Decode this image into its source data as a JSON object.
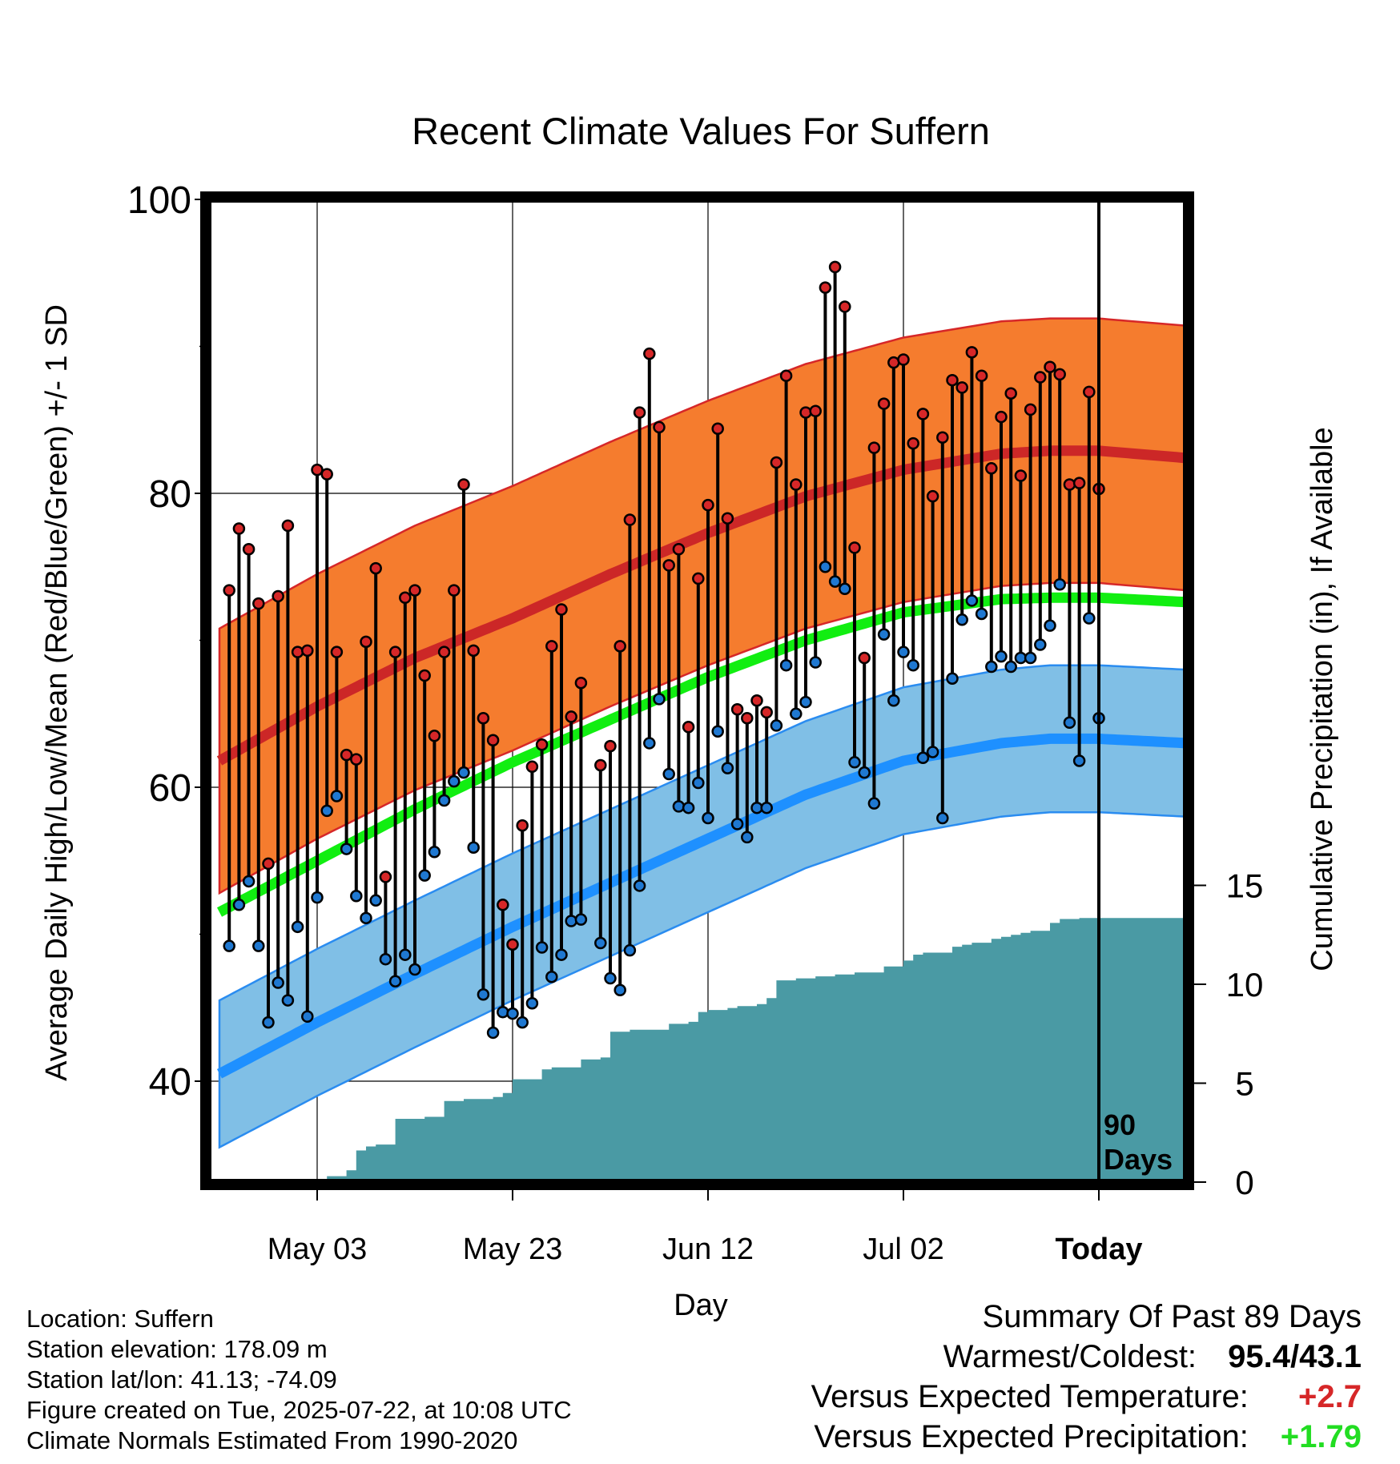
{
  "title": "Recent Climate Values For Suffern",
  "xlabel": "Day",
  "ylabel_left": "Average Daily High/Low/Mean (Red/Blue/Green) +/- 1 SD",
  "ylabel_right": "Cumulative Precipitation (in), If Available",
  "today_label_1": "90",
  "today_label_2": "Days",
  "info": {
    "location": "Location: Suffern",
    "elevation": "Station elevation: 178.09 m",
    "latlon": "Station lat/lon: 41.13; -74.09",
    "created": "Figure created on Tue, 2025-07-22, at 10:08 UTC",
    "normals": "Climate Normals Estimated From 1990-2020"
  },
  "summary": {
    "heading": "Summary Of Past 89 Days",
    "warm_cold_label": "Warmest/Coldest:",
    "warm_cold_value": "95.4/43.1",
    "temp_label": "Versus Expected Temperature:",
    "temp_value": "+2.7",
    "temp_color": "#d62728",
    "precip_label": "Versus Expected Precipitation:",
    "precip_value": "+1.79",
    "precip_color": "#22dd22"
  },
  "chart_data": {
    "type": "line",
    "x_range": [
      -90,
      9
    ],
    "x_ticks": [
      {
        "day": -80,
        "label": "May 03"
      },
      {
        "day": -60,
        "label": "May 23"
      },
      {
        "day": -40,
        "label": "Jun 12"
      },
      {
        "day": -20,
        "label": "Jul 02"
      },
      {
        "day": 0,
        "label": "Today"
      }
    ],
    "y_left_range": [
      33,
      100
    ],
    "y_left_ticks": [
      40,
      60,
      80,
      100
    ],
    "y_right_range": [
      0,
      50
    ],
    "y_right_ticks": [
      0,
      5,
      10,
      15
    ],
    "colors": {
      "high_band": "#f57c2e",
      "high_band_edge": "#d62728",
      "high_normal": "#cc2727",
      "low_band": "#80bfe6",
      "low_band_edge": "#2a8cf0",
      "low_normal": "#1e90ff",
      "mean_normal": "#11ee11",
      "precip": "#4a9aa4",
      "high_dot": "#d62728",
      "low_dot": "#1f78d1"
    },
    "normals": {
      "day": [
        -90,
        -80,
        -70,
        -60,
        -50,
        -40,
        -30,
        -20,
        -10,
        -5,
        0,
        9
      ],
      "high": [
        61.8,
        65.5,
        68.8,
        71.5,
        74.5,
        77.3,
        79.8,
        81.6,
        82.7,
        82.9,
        82.9,
        82.4
      ],
      "high_sd": 9.0,
      "low": [
        40.5,
        44.0,
        47.3,
        50.5,
        53.5,
        56.5,
        59.5,
        61.8,
        63.0,
        63.3,
        63.3,
        63.0
      ],
      "low_sd": 5.0,
      "mean": [
        51.5,
        55.0,
        58.5,
        61.7,
        64.6,
        67.5,
        70.0,
        71.9,
        72.8,
        72.9,
        72.9,
        72.6
      ]
    },
    "daily": [
      {
        "day": -89,
        "high": 73.4,
        "low": 49.2
      },
      {
        "day": -88,
        "high": 77.6,
        "low": 52.0
      },
      {
        "day": -87,
        "high": 76.2,
        "low": 53.6
      },
      {
        "day": -86,
        "high": 72.5,
        "low": 49.2
      },
      {
        "day": -85,
        "high": 54.8,
        "low": 44.0
      },
      {
        "day": -84,
        "high": 73.0,
        "low": 46.7
      },
      {
        "day": -83,
        "high": 77.8,
        "low": 45.5
      },
      {
        "day": -82,
        "high": 69.2,
        "low": 50.5
      },
      {
        "day": -81,
        "high": 69.3,
        "low": 44.4
      },
      {
        "day": -80,
        "high": 81.6,
        "low": 52.5
      },
      {
        "day": -79,
        "high": 81.3,
        "low": 58.4
      },
      {
        "day": -78,
        "high": 69.2,
        "low": 59.4
      },
      {
        "day": -77,
        "high": 62.2,
        "low": 55.8
      },
      {
        "day": -76,
        "high": 61.9,
        "low": 52.6
      },
      {
        "day": -75,
        "high": 69.9,
        "low": 51.1
      },
      {
        "day": -74,
        "high": 74.9,
        "low": 52.3
      },
      {
        "day": -73,
        "high": 53.9,
        "low": 48.3
      },
      {
        "day": -72,
        "high": 69.2,
        "low": 46.8
      },
      {
        "day": -71,
        "high": 72.9,
        "low": 48.6
      },
      {
        "day": -70,
        "high": 73.4,
        "low": 47.6
      },
      {
        "day": -69,
        "high": 67.6,
        "low": 54.0
      },
      {
        "day": -68,
        "high": 63.5,
        "low": 55.6
      },
      {
        "day": -67,
        "high": 69.2,
        "low": 59.1
      },
      {
        "day": -66,
        "high": 73.4,
        "low": 60.4
      },
      {
        "day": -65,
        "high": 80.6,
        "low": 61.0
      },
      {
        "day": -64,
        "high": 69.3,
        "low": 55.9
      },
      {
        "day": -63,
        "high": 64.7,
        "low": 45.9
      },
      {
        "day": -62,
        "high": 63.2,
        "low": 43.3
      },
      {
        "day": -61,
        "high": 52.0,
        "low": 44.7
      },
      {
        "day": -60,
        "high": 49.3,
        "low": 44.6
      },
      {
        "day": -59,
        "high": 57.4,
        "low": 44.0
      },
      {
        "day": -58,
        "high": 61.4,
        "low": 45.3
      },
      {
        "day": -57,
        "high": 62.9,
        "low": 49.1
      },
      {
        "day": -56,
        "high": 69.6,
        "low": 47.1
      },
      {
        "day": -55,
        "high": 72.1,
        "low": 48.6
      },
      {
        "day": -54,
        "high": 64.8,
        "low": 50.9
      },
      {
        "day": -53,
        "high": 67.1,
        "low": 51.0
      },
      {
        "day": -51,
        "high": 61.5,
        "low": 49.4
      },
      {
        "day": -50,
        "high": 62.8,
        "low": 47.0
      },
      {
        "day": -49,
        "high": 69.6,
        "low": 46.2
      },
      {
        "day": -48,
        "high": 78.2,
        "low": 48.9
      },
      {
        "day": -47,
        "high": 85.5,
        "low": 53.3
      },
      {
        "day": -46,
        "high": 89.5,
        "low": 63.0
      },
      {
        "day": -45,
        "high": 84.5,
        "low": 66.0
      },
      {
        "day": -44,
        "high": 75.1,
        "low": 60.9
      },
      {
        "day": -43,
        "high": 76.2,
        "low": 58.7
      },
      {
        "day": -42,
        "high": 64.1,
        "low": 58.6
      },
      {
        "day": -41,
        "high": 74.2,
        "low": 60.3
      },
      {
        "day": -40,
        "high": 79.2,
        "low": 57.9
      },
      {
        "day": -39,
        "high": 84.4,
        "low": 63.8
      },
      {
        "day": -38,
        "high": 78.3,
        "low": 61.3
      },
      {
        "day": -37,
        "high": 65.3,
        "low": 57.5
      },
      {
        "day": -36,
        "high": 64.7,
        "low": 56.6
      },
      {
        "day": -35,
        "high": 65.9,
        "low": 58.6
      },
      {
        "day": -34,
        "high": 65.1,
        "low": 58.6
      },
      {
        "day": -33,
        "high": 82.1,
        "low": 64.2
      },
      {
        "day": -32,
        "high": 88.0,
        "low": 68.3
      },
      {
        "day": -31,
        "high": 80.6,
        "low": 65.0
      },
      {
        "day": -30,
        "high": 85.5,
        "low": 65.8
      },
      {
        "day": -29,
        "high": 85.6,
        "low": 68.5
      },
      {
        "day": -28,
        "high": 94.0,
        "low": 75.0
      },
      {
        "day": -27,
        "high": 95.4,
        "low": 74.0
      },
      {
        "day": -26,
        "high": 92.7,
        "low": 73.5
      },
      {
        "day": -25,
        "high": 76.3,
        "low": 61.7
      },
      {
        "day": -24,
        "high": 68.8,
        "low": 61.0
      },
      {
        "day": -23,
        "high": 83.1,
        "low": 58.9
      },
      {
        "day": -22,
        "high": 86.1,
        "low": 70.4
      },
      {
        "day": -21,
        "high": 88.9,
        "low": 65.9
      },
      {
        "day": -20,
        "high": 89.1,
        "low": 69.2
      },
      {
        "day": -19,
        "high": 83.4,
        "low": 68.3
      },
      {
        "day": -18,
        "high": 85.4,
        "low": 62.0
      },
      {
        "day": -17,
        "high": 79.8,
        "low": 62.4
      },
      {
        "day": -16,
        "high": 83.8,
        "low": 57.9
      },
      {
        "day": -15,
        "high": 87.7,
        "low": 67.4
      },
      {
        "day": -14,
        "high": 87.2,
        "low": 71.4
      },
      {
        "day": -13,
        "high": 89.6,
        "low": 72.7
      },
      {
        "day": -12,
        "high": 88.0,
        "low": 71.8
      },
      {
        "day": -11,
        "high": 81.7,
        "low": 68.2
      },
      {
        "day": -10,
        "high": 85.2,
        "low": 68.9
      },
      {
        "day": -9,
        "high": 86.8,
        "low": 68.2
      },
      {
        "day": -8,
        "high": 81.2,
        "low": 68.8
      },
      {
        "day": -7,
        "high": 85.7,
        "low": 68.8
      },
      {
        "day": -6,
        "high": 87.9,
        "low": 69.7
      },
      {
        "day": -5,
        "high": 88.6,
        "low": 71.0
      },
      {
        "day": -4,
        "high": 88.1,
        "low": 73.8
      },
      {
        "day": -3,
        "high": 80.6,
        "low": 64.4
      },
      {
        "day": -2,
        "high": 80.7,
        "low": 61.8
      },
      {
        "day": -1,
        "high": 86.9,
        "low": 71.5
      },
      {
        "day": 0,
        "high": 80.3,
        "low": 64.7
      }
    ],
    "precip_cumulative": {
      "day": [
        -90,
        -80,
        -79,
        -77,
        -76,
        -75,
        -74,
        -72,
        -69,
        -67,
        -65,
        -62,
        -61,
        -60,
        -57,
        -56,
        -55,
        -53,
        -51,
        -50,
        -48,
        -46,
        -44,
        -42,
        -41,
        -40,
        -38,
        -37,
        -36,
        -35,
        -34,
        -33,
        -31,
        -29,
        -27,
        -26,
        -25,
        -22,
        -21,
        -20,
        -19,
        -18,
        -15,
        -14,
        -13,
        -11,
        -10,
        -9,
        -8,
        -7,
        -6,
        -5,
        -4,
        -3,
        -2,
        -1,
        0,
        9
      ],
      "value": [
        0.05,
        0.05,
        0.3,
        0.6,
        1.6,
        1.8,
        1.9,
        3.2,
        3.3,
        4.1,
        4.2,
        4.3,
        4.5,
        5.2,
        5.7,
        5.8,
        5.8,
        6.2,
        6.3,
        7.6,
        7.7,
        7.7,
        8.0,
        8.1,
        8.6,
        8.7,
        8.8,
        8.9,
        8.9,
        9.0,
        9.3,
        10.2,
        10.3,
        10.4,
        10.5,
        10.5,
        10.6,
        10.9,
        10.9,
        11.2,
        11.5,
        11.6,
        11.9,
        12.0,
        12.1,
        12.3,
        12.4,
        12.5,
        12.6,
        12.7,
        12.7,
        13.1,
        13.3,
        13.3,
        13.35,
        13.35,
        13.35,
        13.35
      ]
    }
  }
}
